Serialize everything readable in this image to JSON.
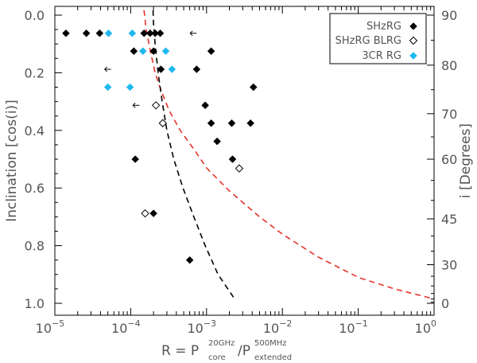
{
  "chart_data": {
    "type": "scatter",
    "title": "",
    "x_axis": {
      "scale": "log",
      "range": [
        1e-05,
        1
      ],
      "ticks": [
        {
          "value": 1e-05,
          "base": "10",
          "exp": "−5"
        },
        {
          "value": 0.0001,
          "base": "10",
          "exp": "−4"
        },
        {
          "value": 0.001,
          "base": "10",
          "exp": "−3"
        },
        {
          "value": 0.01,
          "base": "10",
          "exp": "−2"
        },
        {
          "value": 0.1,
          "base": "10",
          "exp": "−1"
        },
        {
          "value": 1,
          "base": "10",
          "exp": "0"
        }
      ],
      "label": {
        "prefix": "R = P",
        "core_sup": "20GHz",
        "core_sub": "core",
        "slash": "/P",
        "ext_sup": "500MHz",
        "ext_sub": "extended"
      }
    },
    "y_axis_left": {
      "label": "Inclination [cos(i)]",
      "range": [
        0,
        1.03
      ],
      "inverted": true,
      "ticks": [
        {
          "value": 0.0,
          "label": "0.0"
        },
        {
          "value": 0.2,
          "label": "0.2"
        },
        {
          "value": 0.4,
          "label": "0.4"
        },
        {
          "value": 0.6,
          "label": "0.6"
        },
        {
          "value": 0.8,
          "label": "0.8"
        },
        {
          "value": 1.0,
          "label": "1.0"
        }
      ]
    },
    "y_axis_right": {
      "label": "i [Degrees]",
      "ticks": [
        {
          "degrees": 90,
          "label": "90"
        },
        {
          "degrees": 80,
          "label": "80"
        },
        {
          "degrees": 70,
          "label": "70"
        },
        {
          "degrees": 60,
          "label": "60"
        },
        {
          "degrees": 45,
          "label": "45"
        },
        {
          "degrees": 30,
          "label": "30"
        },
        {
          "degrees": 0,
          "label": "0"
        }
      ]
    },
    "legend": {
      "position": "top-right",
      "entries": [
        {
          "label": "SHzRG",
          "marker": "filled-diamond",
          "color": "#000000"
        },
        {
          "label": "SHzRG BLRG",
          "marker": "open-diamond",
          "color": "#000000"
        },
        {
          "label": "3CR RG",
          "marker": "filled-diamond",
          "color": "#1fb8f0"
        }
      ]
    },
    "series": [
      {
        "name": "SHzRG",
        "marker": "filled-diamond",
        "color": "#000000",
        "points": [
          {
            "x": 1.4e-05,
            "y": 0.063
          },
          {
            "x": 2.6e-05,
            "y": 0.063
          },
          {
            "x": 3.9e-05,
            "y": 0.063
          },
          {
            "x": 0.00015,
            "y": 0.063
          },
          {
            "x": 0.00018,
            "y": 0.063
          },
          {
            "x": 0.00021,
            "y": 0.063
          },
          {
            "x": 0.000245,
            "y": 0.063
          },
          {
            "x": 0.00011,
            "y": 0.125
          },
          {
            "x": 0.0002,
            "y": 0.125
          },
          {
            "x": 0.00115,
            "y": 0.125
          },
          {
            "x": 0.00025,
            "y": 0.188
          },
          {
            "x": 0.00074,
            "y": 0.188
          },
          {
            "x": 0.00415,
            "y": 0.25
          },
          {
            "x": 0.00096,
            "y": 0.313
          },
          {
            "x": 0.00115,
            "y": 0.375
          },
          {
            "x": 0.00215,
            "y": 0.375
          },
          {
            "x": 0.0038,
            "y": 0.375
          },
          {
            "x": 0.00138,
            "y": 0.438
          },
          {
            "x": 0.0022,
            "y": 0.5
          },
          {
            "x": 0.000115,
            "y": 0.5
          },
          {
            "x": 0.0002,
            "y": 0.688
          },
          {
            "x": 0.0006,
            "y": 0.85
          }
        ]
      },
      {
        "name": "SHzRG BLRG",
        "marker": "open-diamond",
        "color": "#000000",
        "points": [
          {
            "x": 0.000215,
            "y": 0.313
          },
          {
            "x": 0.000265,
            "y": 0.375
          },
          {
            "x": 0.0027,
            "y": 0.532
          },
          {
            "x": 0.000155,
            "y": 0.688
          }
        ]
      },
      {
        "name": "3CR RG",
        "marker": "filled-diamond",
        "color": "#1fb8f0",
        "points": [
          {
            "x": 5.1e-05,
            "y": 0.063
          },
          {
            "x": 0.000105,
            "y": 0.063
          },
          {
            "x": 0.000145,
            "y": 0.125
          },
          {
            "x": 0.00029,
            "y": 0.125
          },
          {
            "x": 0.00035,
            "y": 0.188
          },
          {
            "x": 5e-05,
            "y": 0.25
          },
          {
            "x": 9.8e-05,
            "y": 0.25
          }
        ]
      }
    ],
    "upper_limits": [
      {
        "x": 0.00067,
        "y": 0.063
      },
      {
        "x": 5e-05,
        "y": 0.188
      },
      {
        "x": 0.000118,
        "y": 0.313
      }
    ],
    "curves": [
      {
        "name": "red-dashed-model",
        "color": "#e8322a",
        "dash": true,
        "points": [
          [
            0.000145,
            -0.05
          ],
          [
            0.00016,
            0.05
          ],
          [
            0.00018,
            0.12
          ],
          [
            0.00021,
            0.2
          ],
          [
            0.00025,
            0.26
          ],
          [
            0.00032,
            0.33
          ],
          [
            0.00045,
            0.4
          ],
          [
            0.0007,
            0.47
          ],
          [
            0.001,
            0.53
          ],
          [
            0.002,
            0.61
          ],
          [
            0.005,
            0.7
          ],
          [
            0.01,
            0.76
          ],
          [
            0.03,
            0.84
          ],
          [
            0.1,
            0.91
          ],
          [
            0.3,
            0.95
          ],
          [
            1.0,
            0.985
          ]
        ]
      },
      {
        "name": "black-dashed-model",
        "color": "#000000",
        "dash": true,
        "points": [
          [
            0.000195,
            -0.05
          ],
          [
            0.0002,
            0.03
          ],
          [
            0.00021,
            0.1
          ],
          [
            0.00023,
            0.2
          ],
          [
            0.00026,
            0.3
          ],
          [
            0.0003,
            0.4
          ],
          [
            0.00037,
            0.5
          ],
          [
            0.00049,
            0.6
          ],
          [
            0.00068,
            0.7
          ],
          [
            0.00096,
            0.8
          ],
          [
            0.00142,
            0.9
          ],
          [
            0.00242,
            0.99
          ]
        ]
      }
    ]
  }
}
